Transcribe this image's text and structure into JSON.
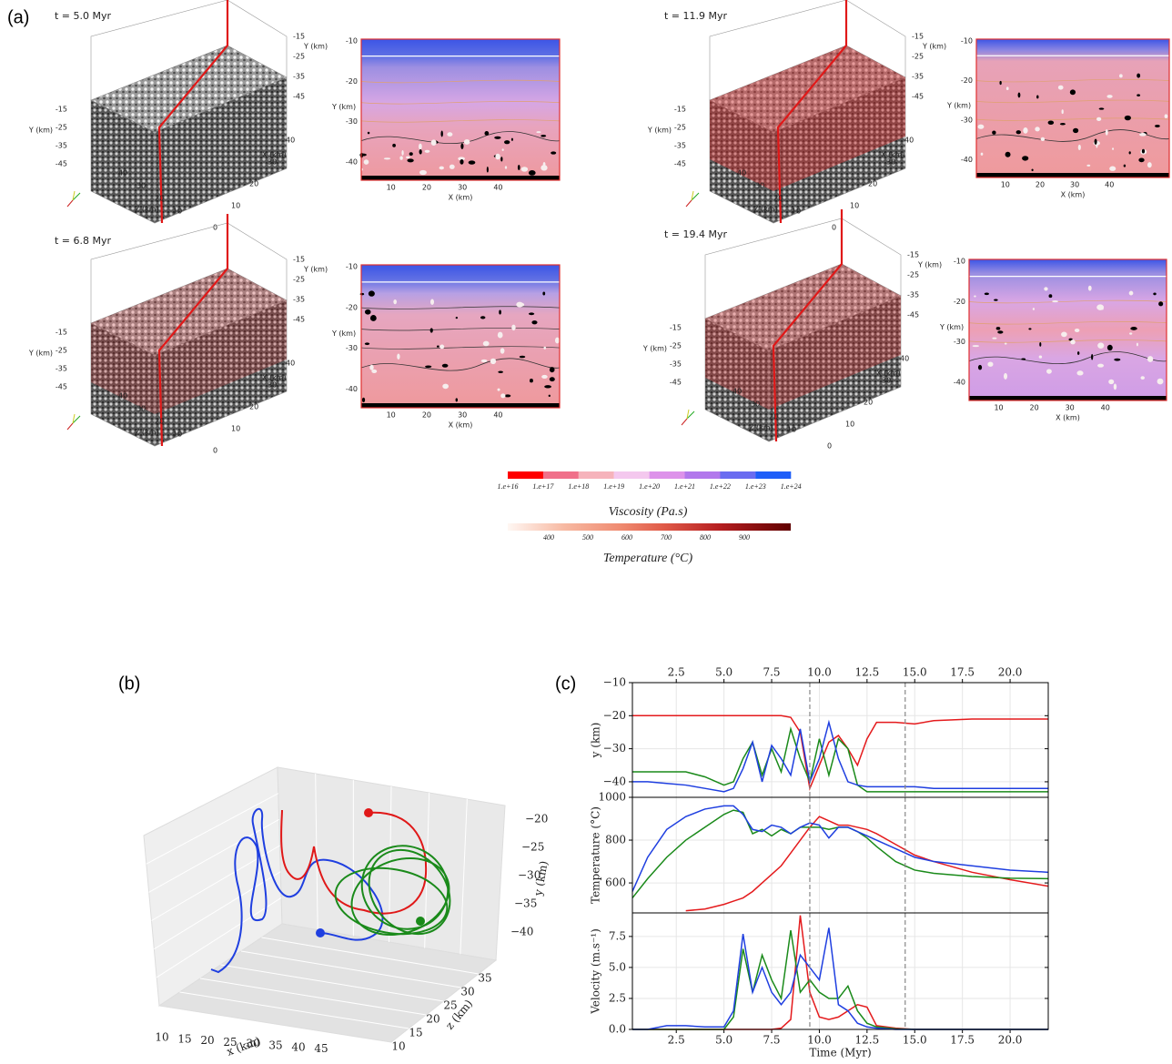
{
  "panel_a": {
    "label": "(a)",
    "snapshots": [
      {
        "time": "t = 5.0 Myr",
        "box": {
          "y_label": "Y (km)",
          "y_ticks": [
            "-15",
            "-25",
            "-35",
            "-45"
          ],
          "z_label": "Z (km)",
          "z_ticks": [
            "40",
            "30",
            "20",
            "10"
          ],
          "x_label": "X (km)",
          "x_ticks": [
            "0",
            "10",
            "20",
            "30",
            "40"
          ],
          "right_label": "Y (km)",
          "right_ticks": [
            "-15",
            "-25",
            "-35",
            "-45"
          ]
        },
        "slice": {
          "y_label": "Y (km)",
          "y_ticks": [
            "-10",
            "-20",
            "-30",
            "-40"
          ],
          "x_label": "X (km)",
          "x_ticks": [
            "10",
            "20",
            "30",
            "40"
          ]
        }
      },
      {
        "time": "t = 6.8 Myr",
        "box": {
          "y_label": "Y (km)",
          "y_ticks": [
            "-15",
            "-25",
            "-35",
            "-45"
          ],
          "z_label": "Z (km)",
          "z_ticks": [
            "40",
            "30",
            "20",
            "10"
          ],
          "x_label": "X (km)",
          "x_ticks": [
            "0",
            "10",
            "20",
            "30",
            "40"
          ],
          "right_label": "Y (km)",
          "right_ticks": [
            "-15",
            "-25",
            "-35",
            "-45"
          ]
        },
        "slice": {
          "y_label": "Y (km)",
          "y_ticks": [
            "-10",
            "-20",
            "-30",
            "-40"
          ],
          "x_label": "X (km)",
          "x_ticks": [
            "10",
            "20",
            "30",
            "40"
          ]
        }
      },
      {
        "time": "t = 11.9 Myr",
        "box": {
          "y_label": "Y (km)",
          "y_ticks": [
            "-15",
            "-25",
            "-35",
            "-45"
          ],
          "z_label": "Z (km)",
          "z_ticks": [
            "40",
            "30",
            "20",
            "10"
          ],
          "x_label": "X (km)",
          "x_ticks": [
            "0",
            "10",
            "20",
            "30",
            "40"
          ],
          "right_label": "Y (km)",
          "right_ticks": [
            "-15",
            "-25",
            "-35",
            "-45"
          ]
        },
        "slice": {
          "y_label": "Y (km)",
          "y_ticks": [
            "-10",
            "-20",
            "-30",
            "-40"
          ],
          "x_label": "X (km)",
          "x_ticks": [
            "10",
            "20",
            "30",
            "40"
          ]
        }
      },
      {
        "time": "t = 19.4 Myr",
        "box": {
          "y_label": "Y (km)",
          "y_ticks": [
            "-15",
            "-25",
            "-35",
            "-45"
          ],
          "z_label": "Z (km)",
          "z_ticks": [
            "40",
            "30",
            "20",
            "10"
          ],
          "x_label": "X (km)",
          "x_ticks": [
            "0",
            "10",
            "20",
            "30",
            "40"
          ],
          "right_label": "Y (km)",
          "right_ticks": [
            "-15",
            "-25",
            "-35",
            "-45"
          ]
        },
        "slice": {
          "y_label": "Y (km)",
          "y_ticks": [
            "-10",
            "-20",
            "-30",
            "-40"
          ],
          "x_label": "X (km)",
          "x_ticks": [
            "10",
            "20",
            "30",
            "40"
          ]
        }
      }
    ],
    "viscosity_colorbar": {
      "title": "Viscosity (Pa.s)",
      "labels": [
        "1.e+16",
        "1.e+17",
        "1.e+18",
        "1.e+19",
        "1.e+20",
        "1.e+21",
        "1.e+22",
        "1.e+23",
        "1.e+24"
      ]
    },
    "temperature_colorbar": {
      "title": "Temperature (°C)",
      "labels": [
        "400",
        "500",
        "600",
        "700",
        "800",
        "900"
      ]
    }
  },
  "panel_b": {
    "label": "(b)",
    "x_label": "x (km)",
    "x_ticks": [
      "10",
      "15",
      "20",
      "25",
      "30",
      "35",
      "40",
      "45"
    ],
    "z_label": "z (km)",
    "z_ticks": [
      "10",
      "15",
      "20",
      "25",
      "30",
      "35"
    ],
    "y_label": "y (km)",
    "y_ticks": [
      "−20",
      "−25",
      "−30",
      "−35",
      "−40"
    ]
  },
  "panel_c": {
    "label": "(c)"
  },
  "chart_data": [
    {
      "type": "line",
      "ylabel": "y (km)",
      "x": [
        0.2,
        1,
        2,
        3,
        4,
        5,
        5.5,
        6,
        6.5,
        7,
        7.5,
        8,
        8.5,
        9,
        9.5,
        10,
        10.5,
        11,
        11.5,
        12,
        12.5,
        13,
        14,
        15,
        16,
        18,
        20,
        22
      ],
      "series": [
        {
          "color": "#e41a1c",
          "values": [
            -20,
            -20,
            -20,
            -20,
            -20,
            -20,
            -20,
            -20,
            -20,
            -20,
            -20,
            -20,
            -20.5,
            -25,
            -42,
            -35,
            -28,
            -26,
            -30,
            -35,
            -27,
            -22,
            -22,
            -22.5,
            -21.5,
            -21,
            -21,
            -21
          ]
        },
        {
          "color": "#1a8a1a",
          "values": [
            -37,
            -37,
            -37,
            -37,
            -38.5,
            -41,
            -40,
            -33,
            -28,
            -38,
            -30,
            -37,
            -24,
            -33,
            -40,
            -27,
            -38,
            -27,
            -30,
            -41,
            -43,
            -43,
            -43,
            -43,
            -43,
            -43,
            -43,
            -43
          ]
        },
        {
          "color": "#1f3fe0",
          "values": [
            -40,
            -40,
            -40.5,
            -41,
            -42,
            -43,
            -42,
            -36,
            -28,
            -40,
            -29,
            -33,
            -38,
            -24,
            -40,
            -33,
            -22,
            -33,
            -40,
            -41,
            -41.5,
            -41.5,
            -41.5,
            -41.5,
            -42,
            -42,
            -42,
            -42
          ]
        }
      ],
      "xlim": [
        0.2,
        22
      ],
      "ylim": [
        -44.7,
        -10
      ],
      "xticks": [
        2.5,
        {
          "value": 5,
          "label": "5.0"
        },
        7.5,
        {
          "value": 10,
          "label": "10.0"
        },
        12.5,
        {
          "value": 15,
          "label": "15.0"
        },
        17.5,
        {
          "value": 20,
          "label": "20.0"
        }
      ],
      "yticks": [
        {
          "value": -10,
          "label": "−10"
        },
        {
          "value": -20,
          "label": "−20"
        },
        {
          "value": -30,
          "label": "−30"
        },
        {
          "value": -40,
          "label": "−40"
        }
      ],
      "vlines": [
        9.5,
        14.5
      ],
      "grid": true
    },
    {
      "type": "line",
      "ylabel": "Temperature (°C)",
      "x": [
        0.2,
        1,
        2,
        3,
        4,
        5,
        5.5,
        6,
        6.5,
        7,
        7.5,
        8,
        8.5,
        9,
        9.5,
        10,
        10.5,
        11,
        11.5,
        12,
        12.5,
        13,
        14,
        15,
        16,
        18,
        20,
        22
      ],
      "series": [
        {
          "color": "#e41a1c",
          "values": [
            null,
            null,
            null,
            470,
            478,
            500,
            515,
            530,
            560,
            600,
            640,
            680,
            740,
            800,
            860,
            910,
            890,
            870,
            870,
            860,
            850,
            830,
            780,
            730,
            700,
            650,
            615,
            585
          ]
        },
        {
          "color": "#1a8a1a",
          "values": [
            530,
            620,
            720,
            800,
            860,
            920,
            940,
            930,
            830,
            850,
            820,
            850,
            830,
            860,
            860,
            860,
            850,
            860,
            860,
            840,
            810,
            770,
            700,
            660,
            645,
            630,
            622,
            620
          ]
        },
        {
          "color": "#1f3fe0",
          "values": [
            560,
            720,
            850,
            910,
            945,
            960,
            960,
            920,
            850,
            840,
            870,
            860,
            830,
            860,
            880,
            870,
            810,
            860,
            860,
            840,
            820,
            800,
            760,
            720,
            700,
            680,
            660,
            650
          ]
        }
      ],
      "xlim": [
        0.2,
        22
      ],
      "ylim": [
        460,
        1000
      ],
      "yticks": [
        600,
        800,
        1000
      ],
      "vlines": [
        9.5,
        14.5
      ],
      "grid": true
    },
    {
      "type": "line",
      "ylabel": "Velocity (m.s⁻¹)",
      "xlabel": "Time (Myr)",
      "x": [
        0.2,
        1,
        2,
        3,
        4,
        5,
        5.5,
        6,
        6.5,
        7,
        7.5,
        8,
        8.5,
        9,
        9.5,
        10,
        10.5,
        11,
        11.5,
        12,
        12.5,
        13,
        14,
        15,
        16,
        18,
        20,
        22
      ],
      "series": [
        {
          "color": "#e41a1c",
          "values": [
            0,
            0,
            0,
            0,
            0,
            0,
            0,
            0,
            0,
            0,
            0,
            0.1,
            0.8,
            9.2,
            3,
            1,
            0.8,
            1,
            1.5,
            2,
            1.8,
            0.3,
            0.1,
            0,
            0,
            0,
            0,
            0
          ]
        },
        {
          "color": "#1a8a1a",
          "values": [
            0,
            0,
            0,
            0,
            0,
            0,
            1,
            6.5,
            3,
            6,
            4,
            2.5,
            8,
            3,
            4,
            3,
            2.5,
            2.5,
            3.5,
            1.5,
            0.5,
            0.2,
            0.05,
            0,
            0,
            0,
            0,
            0
          ]
        },
        {
          "color": "#1f3fe0",
          "values": [
            0,
            0,
            0.3,
            0.3,
            0.2,
            0.2,
            1.5,
            7.7,
            3,
            5,
            3,
            2,
            3,
            6,
            5,
            4,
            8.2,
            2,
            1.5,
            0.5,
            0.2,
            0.1,
            0,
            0,
            0,
            0,
            0,
            0
          ]
        }
      ],
      "xlim": [
        0.2,
        22
      ],
      "ylim": [
        0,
        9.4
      ],
      "xticks": [
        2.5,
        {
          "value": 5,
          "label": "5.0"
        },
        7.5,
        {
          "value": 10,
          "label": "10.0"
        },
        12.5,
        {
          "value": 15,
          "label": "15.0"
        },
        17.5,
        {
          "value": 20,
          "label": "20.0"
        }
      ],
      "yticks": [
        {
          "value": 0,
          "label": "0.0"
        },
        {
          "value": 2.5,
          "label": "2.5"
        },
        {
          "value": 5,
          "label": "5.0"
        },
        {
          "value": 7.5,
          "label": "7.5"
        }
      ],
      "vlines": [
        9.5,
        14.5
      ],
      "grid": true
    }
  ]
}
